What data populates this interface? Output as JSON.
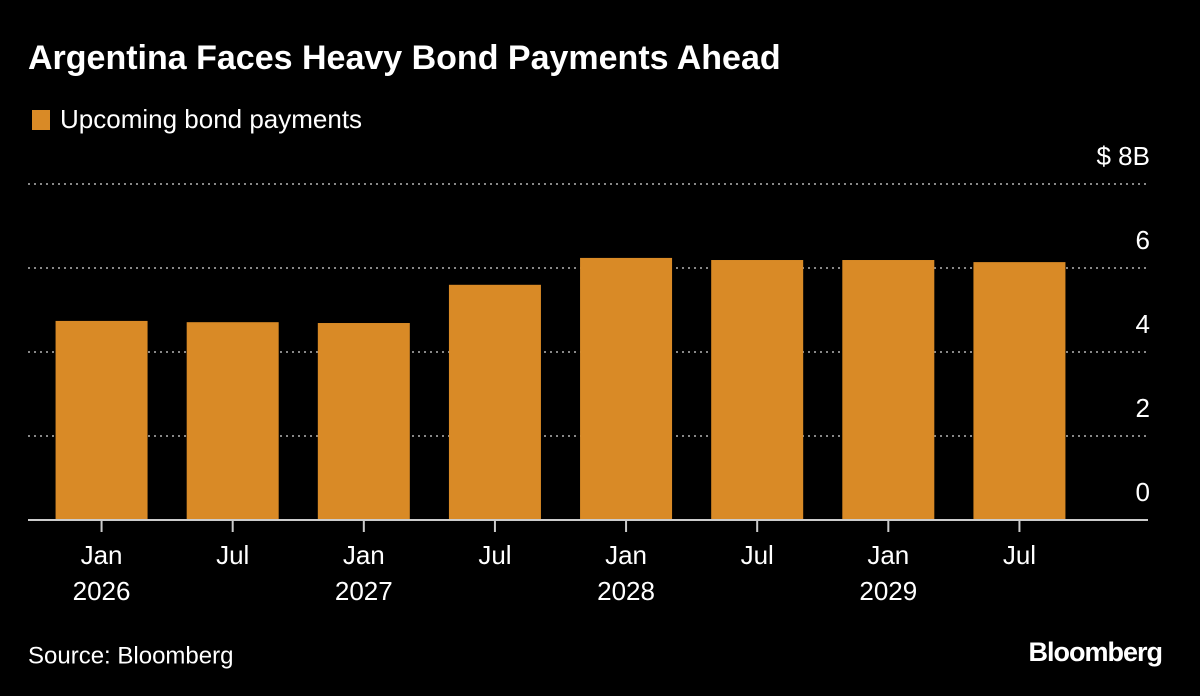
{
  "chart_data": {
    "type": "bar",
    "title": "Argentina Faces Heavy Bond Payments Ahead",
    "categories": [
      "Jan 2026",
      "Jul",
      "Jan 2027",
      "Jul",
      "Jan 2028",
      "Jul",
      "Jan 2029",
      "Jul"
    ],
    "series": [
      {
        "name": "Upcoming bond payments",
        "color": "#d98a26",
        "values": [
          4.74,
          4.71,
          4.69,
          5.6,
          6.24,
          6.19,
          6.19,
          6.14
        ]
      }
    ],
    "ylim": [
      0,
      8
    ],
    "yticks": [
      0,
      2,
      4,
      6,
      {
        "value": 8,
        "label": "$ 8B"
      }
    ],
    "grid": true,
    "source": "Source: Bloomberg",
    "brand": "Bloomberg"
  }
}
